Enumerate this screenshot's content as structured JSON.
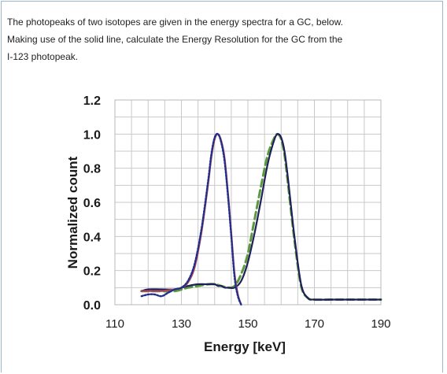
{
  "question": {
    "lines": [
      "The photopeaks of two isotopes are given in the energy spectra for a GC, below.",
      "Making use of the solid line, calculate the Energy Resolution  for the GC from the",
      "I-123 photopeak."
    ]
  },
  "chart_data": {
    "type": "line",
    "title": "",
    "xlabel": "Energy [keV]",
    "ylabel": "Normalized count",
    "xlim": [
      110,
      190
    ],
    "ylim": [
      0,
      1.2
    ],
    "x_ticks": [
      "110",
      "130",
      "150",
      "170",
      "190"
    ],
    "y_ticks": [
      "0.0",
      "0.2",
      "0.4",
      "0.6",
      "0.8",
      "1.0",
      "1.2"
    ],
    "grid": true,
    "series": [
      {
        "style": "solid",
        "color": "#1f1f5a",
        "x": [
          118,
          120,
          124,
          128,
          132,
          135,
          138,
          140,
          141,
          142,
          143,
          144,
          146,
          148,
          150,
          152,
          154,
          156,
          158,
          159,
          160,
          161,
          162,
          164,
          166,
          168,
          170,
          175,
          180,
          190
        ],
        "y": [
          0.08,
          0.09,
          0.09,
          0.09,
          0.11,
          0.12,
          0.12,
          0.12,
          0.11,
          0.11,
          0.1,
          0.1,
          0.1,
          0.14,
          0.25,
          0.42,
          0.62,
          0.83,
          0.97,
          1.0,
          0.98,
          0.9,
          0.75,
          0.4,
          0.12,
          0.04,
          0.03,
          0.03,
          0.03,
          0.03
        ]
      },
      {
        "style": "dashed",
        "color": "#5a9a3c",
        "x": [
          118,
          120,
          124,
          128,
          132,
          135,
          138,
          140,
          142,
          144,
          146,
          148,
          150,
          152,
          154,
          156,
          158,
          159,
          160,
          161,
          162,
          164,
          166,
          168,
          170,
          175,
          180,
          190
        ],
        "y": [
          0.08,
          0.08,
          0.08,
          0.08,
          0.1,
          0.11,
          0.12,
          0.12,
          0.11,
          0.1,
          0.11,
          0.18,
          0.3,
          0.5,
          0.7,
          0.88,
          0.98,
          1.0,
          0.97,
          0.88,
          0.72,
          0.38,
          0.11,
          0.04,
          0.03,
          0.03,
          0.03,
          0.03
        ]
      },
      {
        "style": "solid",
        "color": "#b0475a",
        "x": [
          118,
          120,
          124,
          128,
          130,
          132,
          134,
          136,
          138,
          139,
          140,
          141,
          142,
          143,
          144,
          145,
          146,
          147,
          148
        ],
        "y": [
          0.08,
          0.08,
          0.08,
          0.09,
          0.1,
          0.13,
          0.22,
          0.42,
          0.7,
          0.86,
          0.97,
          1.0,
          0.96,
          0.86,
          0.66,
          0.42,
          0.18,
          0.06,
          0.0
        ]
      },
      {
        "style": "dotted",
        "color": "#1f2f8a",
        "x": [
          118,
          120,
          122,
          124,
          126,
          128,
          130,
          132,
          134,
          136,
          138,
          139,
          140,
          141,
          142,
          143,
          144,
          145,
          146,
          147,
          148
        ],
        "y": [
          0.05,
          0.06,
          0.06,
          0.05,
          0.07,
          0.09,
          0.1,
          0.14,
          0.24,
          0.44,
          0.72,
          0.88,
          0.98,
          1.0,
          0.95,
          0.84,
          0.64,
          0.4,
          0.16,
          0.05,
          0.0
        ]
      }
    ]
  }
}
